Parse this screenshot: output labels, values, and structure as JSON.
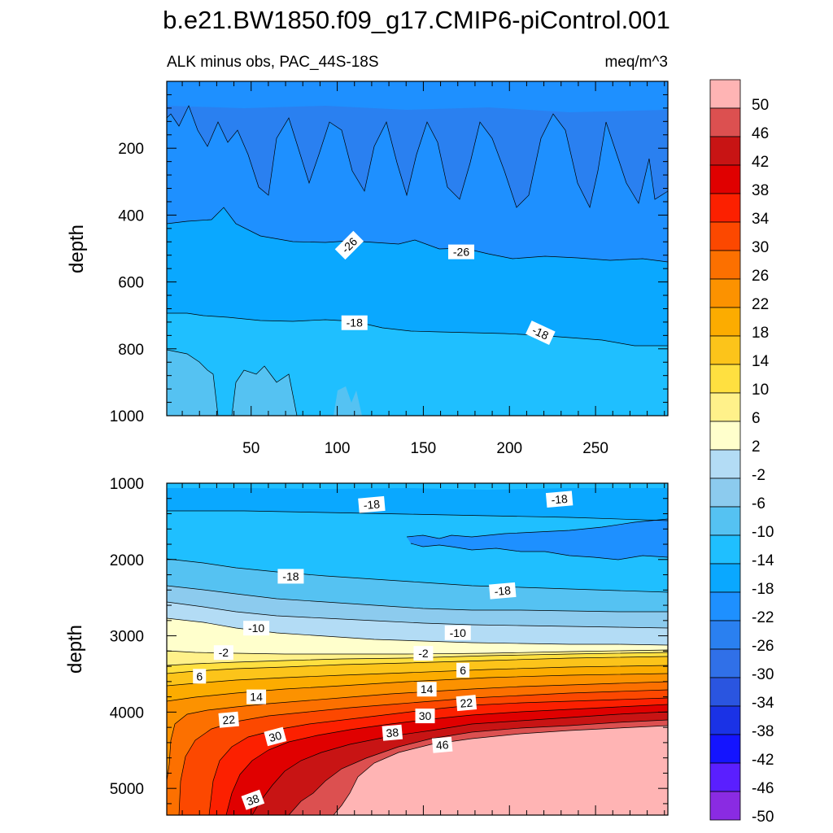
{
  "chart_data": {
    "type": "contour",
    "title": "b.e21.BW1850.f09_g17.CMIP6-piControl.001",
    "left_subtitle": "ALK minus obs, PAC_44S-18S",
    "right_subtitle": "meq/m^3",
    "x_ticks": [
      50,
      100,
      150,
      200,
      250
    ],
    "x_range": [
      1,
      292
    ],
    "panels": [
      {
        "name": "upper",
        "ylabel": "depth",
        "y_range": [
          0,
          1000
        ],
        "y_ticks": [
          200,
          400,
          600,
          800,
          1000
        ],
        "contour_labels": [
          {
            "text": "-26",
            "x": 107,
            "y": 490,
            "rotate": -45
          },
          {
            "text": "-26",
            "x": 172,
            "y": 510,
            "rotate": 0
          },
          {
            "text": "-18",
            "x": 110,
            "y": 722,
            "rotate": 0
          },
          {
            "text": "-18",
            "x": 218,
            "y": 752,
            "rotate": 25
          }
        ]
      },
      {
        "name": "lower",
        "ylabel": "depth",
        "y_range": [
          1000,
          5350
        ],
        "y_ticks": [
          1000,
          2000,
          3000,
          4000,
          5000
        ],
        "contour_labels": [
          {
            "text": "-18",
            "x": 120,
            "y": 1280,
            "rotate": -5
          },
          {
            "text": "-18",
            "x": 229,
            "y": 1210,
            "rotate": -5
          },
          {
            "text": "-18",
            "x": 73,
            "y": 2220,
            "rotate": 0
          },
          {
            "text": "-18",
            "x": 196,
            "y": 2410,
            "rotate": -5
          },
          {
            "text": "-10",
            "x": 53,
            "y": 2900,
            "rotate": 0
          },
          {
            "text": "-10",
            "x": 170,
            "y": 2960,
            "rotate": 0
          },
          {
            "text": "-2",
            "x": 34,
            "y": 3220,
            "rotate": 0
          },
          {
            "text": "-2",
            "x": 150,
            "y": 3230,
            "rotate": 0
          },
          {
            "text": "6",
            "x": 20,
            "y": 3530,
            "rotate": 0
          },
          {
            "text": "6",
            "x": 173,
            "y": 3450,
            "rotate": 0
          },
          {
            "text": "14",
            "x": 53,
            "y": 3800,
            "rotate": 0
          },
          {
            "text": "14",
            "x": 152,
            "y": 3700,
            "rotate": 0
          },
          {
            "text": "22",
            "x": 37,
            "y": 4100,
            "rotate": -5
          },
          {
            "text": "22",
            "x": 175,
            "y": 3880,
            "rotate": -5
          },
          {
            "text": "30",
            "x": 64,
            "y": 4320,
            "rotate": -15
          },
          {
            "text": "30",
            "x": 151,
            "y": 4050,
            "rotate": 0
          },
          {
            "text": "38",
            "x": 132,
            "y": 4270,
            "rotate": -5
          },
          {
            "text": "46",
            "x": 161,
            "y": 4430,
            "rotate": -5
          },
          {
            "text": "38",
            "x": 51,
            "y": 5150,
            "rotate": -20
          }
        ]
      }
    ],
    "colorbar": {
      "levels": [
        -50,
        -46,
        -42,
        -38,
        -34,
        -30,
        -26,
        -22,
        -18,
        -14,
        -10,
        -6,
        -2,
        2,
        6,
        10,
        14,
        18,
        22,
        26,
        30,
        34,
        38,
        42,
        46,
        50
      ],
      "colors": [
        "#8a2be2",
        "#5a1fff",
        "#1414ff",
        "#1a32e6",
        "#2a55e0",
        "#3070e8",
        "#2a80f0",
        "#1e90ff",
        "#0aa8ff",
        "#1fbfff",
        "#55c2f2",
        "#8ccbee",
        "#b3dcf5",
        "#ffffcc",
        "#fff18a",
        "#ffe040",
        "#fcc41a",
        "#fcac00",
        "#fc9200",
        "#fc7000",
        "#fc4800",
        "#fc2000",
        "#e00000",
        "#c81414",
        "#dc5050",
        "#ffb4b4"
      ]
    }
  }
}
